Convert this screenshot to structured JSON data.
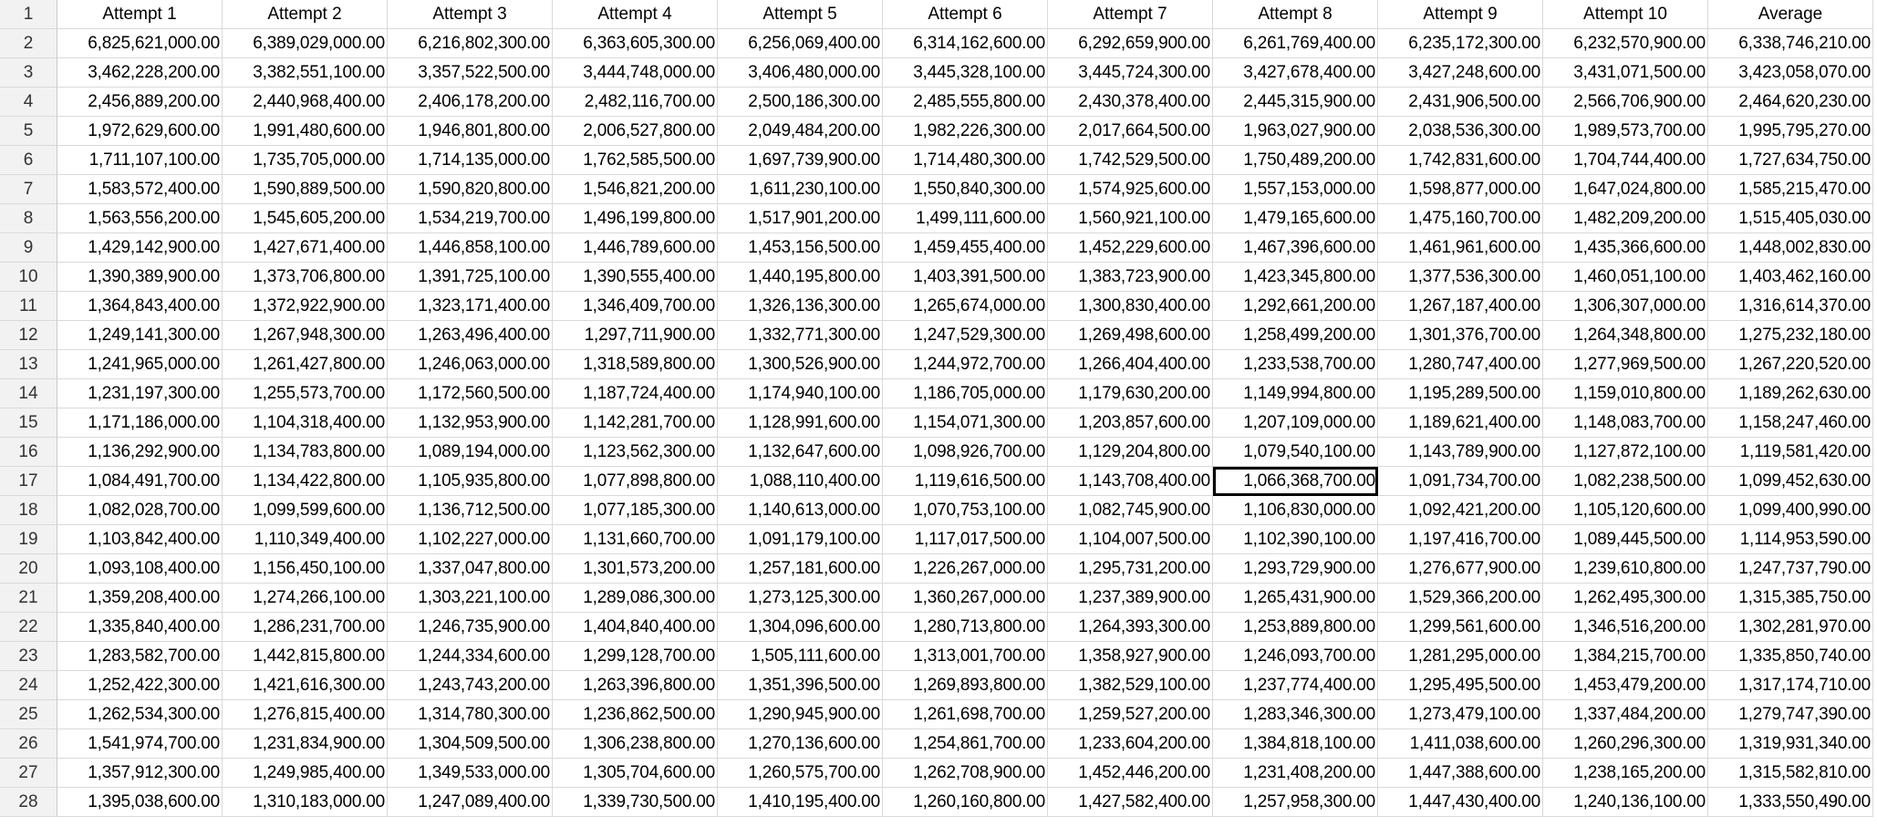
{
  "sheet": {
    "row_numbers": [
      "1",
      "2",
      "3",
      "4",
      "5",
      "6",
      "7",
      "8",
      "9",
      "10",
      "11",
      "12",
      "13",
      "14",
      "15",
      "16",
      "17",
      "18",
      "19",
      "20",
      "21",
      "22",
      "23",
      "24",
      "25",
      "26",
      "27",
      "28"
    ],
    "headers": [
      "Attempt 1",
      "Attempt 2",
      "Attempt 3",
      "Attempt 4",
      "Attempt 5",
      "Attempt 6",
      "Attempt 7",
      "Attempt 8",
      "Attempt 9",
      "Attempt 10",
      "Average"
    ],
    "selected_cell": {
      "row": 17,
      "col": 8,
      "value": "1,066,368,700.00"
    },
    "rows": [
      [
        "6,825,621,000.00",
        "6,389,029,000.00",
        "6,216,802,300.00",
        "6,363,605,300.00",
        "6,256,069,400.00",
        "6,314,162,600.00",
        "6,292,659,900.00",
        "6,261,769,400.00",
        "6,235,172,300.00",
        "6,232,570,900.00",
        "6,338,746,210.00"
      ],
      [
        "3,462,228,200.00",
        "3,382,551,100.00",
        "3,357,522,500.00",
        "3,444,748,000.00",
        "3,406,480,000.00",
        "3,445,328,100.00",
        "3,445,724,300.00",
        "3,427,678,400.00",
        "3,427,248,600.00",
        "3,431,071,500.00",
        "3,423,058,070.00"
      ],
      [
        "2,456,889,200.00",
        "2,440,968,400.00",
        "2,406,178,200.00",
        "2,482,116,700.00",
        "2,500,186,300.00",
        "2,485,555,800.00",
        "2,430,378,400.00",
        "2,445,315,900.00",
        "2,431,906,500.00",
        "2,566,706,900.00",
        "2,464,620,230.00"
      ],
      [
        "1,972,629,600.00",
        "1,991,480,600.00",
        "1,946,801,800.00",
        "2,006,527,800.00",
        "2,049,484,200.00",
        "1,982,226,300.00",
        "2,017,664,500.00",
        "1,963,027,900.00",
        "2,038,536,300.00",
        "1,989,573,700.00",
        "1,995,795,270.00"
      ],
      [
        "1,711,107,100.00",
        "1,735,705,000.00",
        "1,714,135,000.00",
        "1,762,585,500.00",
        "1,697,739,900.00",
        "1,714,480,300.00",
        "1,742,529,500.00",
        "1,750,489,200.00",
        "1,742,831,600.00",
        "1,704,744,400.00",
        "1,727,634,750.00"
      ],
      [
        "1,583,572,400.00",
        "1,590,889,500.00",
        "1,590,820,800.00",
        "1,546,821,200.00",
        "1,611,230,100.00",
        "1,550,840,300.00",
        "1,574,925,600.00",
        "1,557,153,000.00",
        "1,598,877,000.00",
        "1,647,024,800.00",
        "1,585,215,470.00"
      ],
      [
        "1,563,556,200.00",
        "1,545,605,200.00",
        "1,534,219,700.00",
        "1,496,199,800.00",
        "1,517,901,200.00",
        "1,499,111,600.00",
        "1,560,921,100.00",
        "1,479,165,600.00",
        "1,475,160,700.00",
        "1,482,209,200.00",
        "1,515,405,030.00"
      ],
      [
        "1,429,142,900.00",
        "1,427,671,400.00",
        "1,446,858,100.00",
        "1,446,789,600.00",
        "1,453,156,500.00",
        "1,459,455,400.00",
        "1,452,229,600.00",
        "1,467,396,600.00",
        "1,461,961,600.00",
        "1,435,366,600.00",
        "1,448,002,830.00"
      ],
      [
        "1,390,389,900.00",
        "1,373,706,800.00",
        "1,391,725,100.00",
        "1,390,555,400.00",
        "1,440,195,800.00",
        "1,403,391,500.00",
        "1,383,723,900.00",
        "1,423,345,800.00",
        "1,377,536,300.00",
        "1,460,051,100.00",
        "1,403,462,160.00"
      ],
      [
        "1,364,843,400.00",
        "1,372,922,900.00",
        "1,323,171,400.00",
        "1,346,409,700.00",
        "1,326,136,300.00",
        "1,265,674,000.00",
        "1,300,830,400.00",
        "1,292,661,200.00",
        "1,267,187,400.00",
        "1,306,307,000.00",
        "1,316,614,370.00"
      ],
      [
        "1,249,141,300.00",
        "1,267,948,300.00",
        "1,263,496,400.00",
        "1,297,711,900.00",
        "1,332,771,300.00",
        "1,247,529,300.00",
        "1,269,498,600.00",
        "1,258,499,200.00",
        "1,301,376,700.00",
        "1,264,348,800.00",
        "1,275,232,180.00"
      ],
      [
        "1,241,965,000.00",
        "1,261,427,800.00",
        "1,246,063,000.00",
        "1,318,589,800.00",
        "1,300,526,900.00",
        "1,244,972,700.00",
        "1,266,404,400.00",
        "1,233,538,700.00",
        "1,280,747,400.00",
        "1,277,969,500.00",
        "1,267,220,520.00"
      ],
      [
        "1,231,197,300.00",
        "1,255,573,700.00",
        "1,172,560,500.00",
        "1,187,724,400.00",
        "1,174,940,100.00",
        "1,186,705,000.00",
        "1,179,630,200.00",
        "1,149,994,800.00",
        "1,195,289,500.00",
        "1,159,010,800.00",
        "1,189,262,630.00"
      ],
      [
        "1,171,186,000.00",
        "1,104,318,400.00",
        "1,132,953,900.00",
        "1,142,281,700.00",
        "1,128,991,600.00",
        "1,154,071,300.00",
        "1,203,857,600.00",
        "1,207,109,000.00",
        "1,189,621,400.00",
        "1,148,083,700.00",
        "1,158,247,460.00"
      ],
      [
        "1,136,292,900.00",
        "1,134,783,800.00",
        "1,089,194,000.00",
        "1,123,562,300.00",
        "1,132,647,600.00",
        "1,098,926,700.00",
        "1,129,204,800.00",
        "1,079,540,100.00",
        "1,143,789,900.00",
        "1,127,872,100.00",
        "1,119,581,420.00"
      ],
      [
        "1,084,491,700.00",
        "1,134,422,800.00",
        "1,105,935,800.00",
        "1,077,898,800.00",
        "1,088,110,400.00",
        "1,119,616,500.00",
        "1,143,708,400.00",
        "1,066,368,700.00",
        "1,091,734,700.00",
        "1,082,238,500.00",
        "1,099,452,630.00"
      ],
      [
        "1,082,028,700.00",
        "1,099,599,600.00",
        "1,136,712,500.00",
        "1,077,185,300.00",
        "1,140,613,000.00",
        "1,070,753,100.00",
        "1,082,745,900.00",
        "1,106,830,000.00",
        "1,092,421,200.00",
        "1,105,120,600.00",
        "1,099,400,990.00"
      ],
      [
        "1,103,842,400.00",
        "1,110,349,400.00",
        "1,102,227,000.00",
        "1,131,660,700.00",
        "1,091,179,100.00",
        "1,117,017,500.00",
        "1,104,007,500.00",
        "1,102,390,100.00",
        "1,197,416,700.00",
        "1,089,445,500.00",
        "1,114,953,590.00"
      ],
      [
        "1,093,108,400.00",
        "1,156,450,100.00",
        "1,337,047,800.00",
        "1,301,573,200.00",
        "1,257,181,600.00",
        "1,226,267,000.00",
        "1,295,731,200.00",
        "1,293,729,900.00",
        "1,276,677,900.00",
        "1,239,610,800.00",
        "1,247,737,790.00"
      ],
      [
        "1,359,208,400.00",
        "1,274,266,100.00",
        "1,303,221,100.00",
        "1,289,086,300.00",
        "1,273,125,300.00",
        "1,360,267,000.00",
        "1,237,389,900.00",
        "1,265,431,900.00",
        "1,529,366,200.00",
        "1,262,495,300.00",
        "1,315,385,750.00"
      ],
      [
        "1,335,840,400.00",
        "1,286,231,700.00",
        "1,246,735,900.00",
        "1,404,840,400.00",
        "1,304,096,600.00",
        "1,280,713,800.00",
        "1,264,393,300.00",
        "1,253,889,800.00",
        "1,299,561,600.00",
        "1,346,516,200.00",
        "1,302,281,970.00"
      ],
      [
        "1,283,582,700.00",
        "1,442,815,800.00",
        "1,244,334,600.00",
        "1,299,128,700.00",
        "1,505,111,600.00",
        "1,313,001,700.00",
        "1,358,927,900.00",
        "1,246,093,700.00",
        "1,281,295,000.00",
        "1,384,215,700.00",
        "1,335,850,740.00"
      ],
      [
        "1,252,422,300.00",
        "1,421,616,300.00",
        "1,243,743,200.00",
        "1,263,396,800.00",
        "1,351,396,500.00",
        "1,269,893,800.00",
        "1,382,529,100.00",
        "1,237,774,400.00",
        "1,295,495,500.00",
        "1,453,479,200.00",
        "1,317,174,710.00"
      ],
      [
        "1,262,534,300.00",
        "1,276,815,400.00",
        "1,314,780,300.00",
        "1,236,862,500.00",
        "1,290,945,900.00",
        "1,261,698,700.00",
        "1,259,527,200.00",
        "1,283,346,300.00",
        "1,273,479,100.00",
        "1,337,484,200.00",
        "1,279,747,390.00"
      ],
      [
        "1,541,974,700.00",
        "1,231,834,900.00",
        "1,304,509,500.00",
        "1,306,238,800.00",
        "1,270,136,600.00",
        "1,254,861,700.00",
        "1,233,604,200.00",
        "1,384,818,100.00",
        "1,411,038,600.00",
        "1,260,296,300.00",
        "1,319,931,340.00"
      ],
      [
        "1,357,912,300.00",
        "1,249,985,400.00",
        "1,349,533,000.00",
        "1,305,704,600.00",
        "1,260,575,700.00",
        "1,262,708,900.00",
        "1,452,446,200.00",
        "1,231,408,200.00",
        "1,447,388,600.00",
        "1,238,165,200.00",
        "1,315,582,810.00"
      ],
      [
        "1,395,038,600.00",
        "1,310,183,000.00",
        "1,247,089,400.00",
        "1,339,730,500.00",
        "1,410,195,400.00",
        "1,260,160,800.00",
        "1,427,582,400.00",
        "1,257,958,300.00",
        "1,447,430,400.00",
        "1,240,136,100.00",
        "1,333,550,490.00"
      ]
    ]
  }
}
